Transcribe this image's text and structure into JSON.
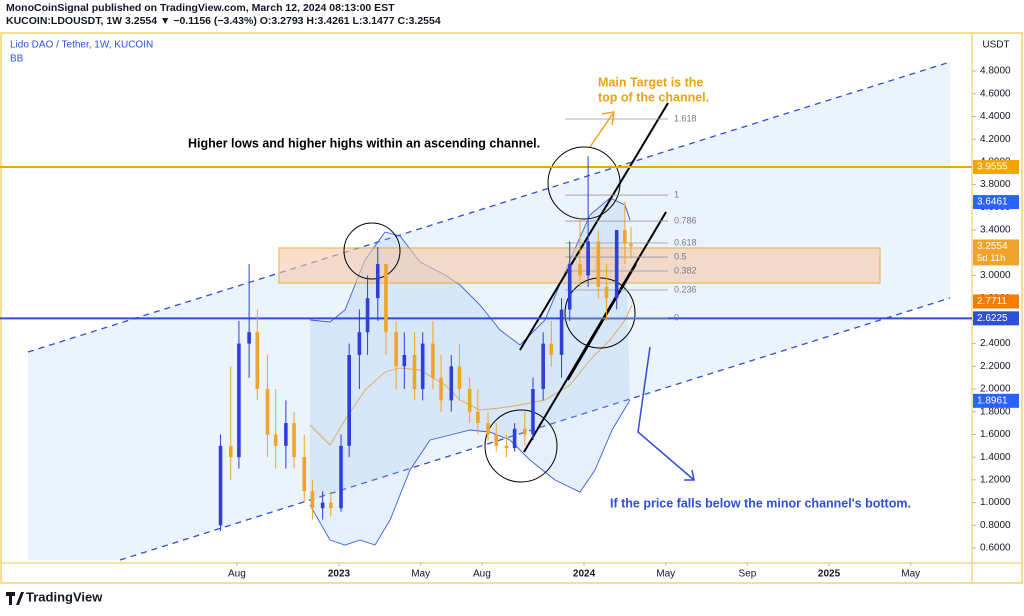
{
  "header": {
    "publisher": "MonoCoinSignal published on TradingView.com, March 12, 2024 08:13:00 EST",
    "quote": "KUCOIN:LDOUSDT, 1W 3.2554 ▼ −0.1156 (−3.43%) O:3.2793 H:3.4261 L:3.1477 C:3.2554"
  },
  "footer": {
    "brand": "TradingView"
  },
  "chart_data": {
    "type": "candlestick",
    "title": "Lido DAO / Tether, 1W, KUCOIN",
    "indicator": "BB",
    "y_axis_label": "USDT",
    "up_color": "#2e3fd6",
    "down_color": "#f0a429",
    "xlim": [
      -16.6,
      31.0
    ],
    "xticks": [
      {
        "value": -5,
        "label": "Aug"
      },
      {
        "value": 0,
        "label": "2023"
      },
      {
        "value": 4,
        "label": "May"
      },
      {
        "value": 7,
        "label": "Aug"
      },
      {
        "value": 12,
        "label": "2024"
      },
      {
        "value": 16,
        "label": "May"
      },
      {
        "value": 20,
        "label": "Sep"
      },
      {
        "value": 24,
        "label": "2025"
      },
      {
        "value": 28,
        "label": "May"
      }
    ],
    "ylim": [
      0.468,
      5.135
    ],
    "yticks": [
      {
        "value": 0.6,
        "label": "0.6000"
      },
      {
        "value": 0.8,
        "label": "0.8000"
      },
      {
        "value": 1.0,
        "label": "1.0000"
      },
      {
        "value": 1.2,
        "label": "1.2000"
      },
      {
        "value": 1.4,
        "label": "1.4000"
      },
      {
        "value": 1.6,
        "label": "1.6000"
      },
      {
        "value": 1.8,
        "label": "1.8000"
      },
      {
        "value": 2.0,
        "label": "2.0000"
      },
      {
        "value": 2.2,
        "label": "2.2000"
      },
      {
        "value": 2.4,
        "label": "2.4000"
      },
      {
        "value": 2.6,
        "label": "2.6000"
      },
      {
        "value": 2.8,
        "label": "2.8000"
      },
      {
        "value": 3.0,
        "label": "3.0000"
      },
      {
        "value": 3.2,
        "label": "3.2000"
      },
      {
        "value": 3.4,
        "label": "3.4000"
      },
      {
        "value": 3.6,
        "label": "3.6000"
      },
      {
        "value": 3.8,
        "label": "3.8000"
      },
      {
        "value": 4.0,
        "label": "4.0000"
      },
      {
        "value": 4.2,
        "label": "4.2000"
      },
      {
        "value": 4.4,
        "label": "4.4000"
      },
      {
        "value": 4.6,
        "label": "4.6000"
      },
      {
        "value": 4.8,
        "label": "4.8000"
      }
    ],
    "x": [
      -5.8,
      -5.3,
      -4.9,
      -4.4,
      -4.0,
      -3.5,
      -3.1,
      -2.6,
      -2.2,
      -1.7,
      -1.3,
      -0.8,
      -0.4,
      0.1,
      0.5,
      1.0,
      1.4,
      1.9,
      2.3,
      2.8,
      3.2,
      3.7,
      4.1,
      4.6,
      5.0,
      5.5,
      5.9,
      6.4,
      6.8,
      7.3,
      7.7,
      8.2,
      8.6,
      9.1,
      9.5,
      10.0,
      10.4,
      10.9,
      11.3,
      11.8,
      12.2,
      12.7,
      13.1,
      13.6,
      14.0,
      14.3
    ],
    "open": [
      0.8,
      1.5,
      1.4,
      2.4,
      2.5,
      2.0,
      1.6,
      1.5,
      1.7,
      1.4,
      1.1,
      0.95,
      1.0,
      0.95,
      1.5,
      2.3,
      2.5,
      2.8,
      3.1,
      2.5,
      2.2,
      2.3,
      2.0,
      2.4,
      2.1,
      1.9,
      2.2,
      2.0,
      1.8,
      1.7,
      1.6,
      1.5,
      1.48,
      1.65,
      1.6,
      2.0,
      2.4,
      2.3,
      2.7,
      3.1,
      3.0,
      3.3,
      2.9,
      2.8,
      3.4,
      3.2793
    ],
    "high": [
      1.6,
      2.2,
      2.6,
      3.1,
      2.7,
      2.3,
      2.0,
      1.9,
      1.8,
      1.6,
      1.2,
      1.1,
      1.1,
      1.6,
      2.4,
      2.7,
      3.0,
      3.25,
      3.1,
      2.6,
      2.5,
      2.5,
      2.5,
      2.6,
      2.3,
      2.3,
      2.4,
      2.1,
      2.0,
      1.8,
      1.7,
      1.6,
      1.7,
      1.8,
      2.1,
      2.5,
      2.6,
      2.8,
      3.3,
      3.5,
      4.05,
      3.4,
      3.1,
      3.4,
      3.65,
      3.4261
    ],
    "low": [
      0.75,
      1.2,
      1.3,
      2.1,
      1.9,
      1.4,
      1.3,
      1.3,
      1.3,
      1.0,
      0.85,
      0.85,
      0.88,
      0.92,
      1.4,
      2.0,
      2.3,
      2.6,
      2.3,
      2.0,
      2.0,
      1.9,
      1.9,
      2.0,
      1.8,
      1.8,
      1.9,
      1.7,
      1.6,
      1.55,
      1.45,
      1.4,
      1.45,
      1.5,
      1.55,
      1.9,
      2.2,
      2.1,
      2.6,
      2.9,
      2.9,
      2.8,
      2.6,
      2.7,
      3.1,
      3.1477
    ],
    "close": [
      1.5,
      1.4,
      2.4,
      2.5,
      2.0,
      1.6,
      1.5,
      1.7,
      1.4,
      1.1,
      0.95,
      1.0,
      0.95,
      1.5,
      2.3,
      2.5,
      2.8,
      3.1,
      2.5,
      2.2,
      2.3,
      2.0,
      2.4,
      2.1,
      1.9,
      2.2,
      2.0,
      1.8,
      1.7,
      1.6,
      1.5,
      1.48,
      1.65,
      1.6,
      2.0,
      2.4,
      2.3,
      2.7,
      3.1,
      3.0,
      3.3,
      2.9,
      2.8,
      3.4,
      3.28,
      3.2554
    ],
    "levels": [
      {
        "value": 3.9555,
        "color": "#f0a500"
      },
      {
        "value": 2.6225,
        "color": "#2f4fd8"
      }
    ],
    "price_labels": [
      {
        "value": 3.9555,
        "color": "#f0a500"
      },
      {
        "value": 3.6461,
        "color": "#2962ff"
      },
      {
        "value": 3.2554,
        "color": "#f0a429",
        "note": "5d 11h"
      },
      {
        "value": 2.7711,
        "color": "#f57c00"
      },
      {
        "value": 2.6225,
        "color": "#2f4fd8"
      },
      {
        "value": 1.8961,
        "color": "#2962ff"
      }
    ],
    "fib_levels": [
      {
        "level": 1.618,
        "price": 4.378
      },
      {
        "level": 1,
        "price": 3.708
      },
      {
        "level": 0.786,
        "price": 3.479
      },
      {
        "level": 0.618,
        "price": 3.286
      },
      {
        "level": 0.5,
        "price": 3.162
      },
      {
        "level": 0.382,
        "price": 3.039
      },
      {
        "level": 0.236,
        "price": 2.872
      },
      {
        "level": 0,
        "price": 2.625
      }
    ],
    "annotations": {
      "channel": "Higher lows and higher highs within an ascending channel.",
      "target_1": "Main Target is the",
      "target_2": "top of the channel.",
      "breakdown": "If the price falls below the minor channel's bottom."
    }
  }
}
